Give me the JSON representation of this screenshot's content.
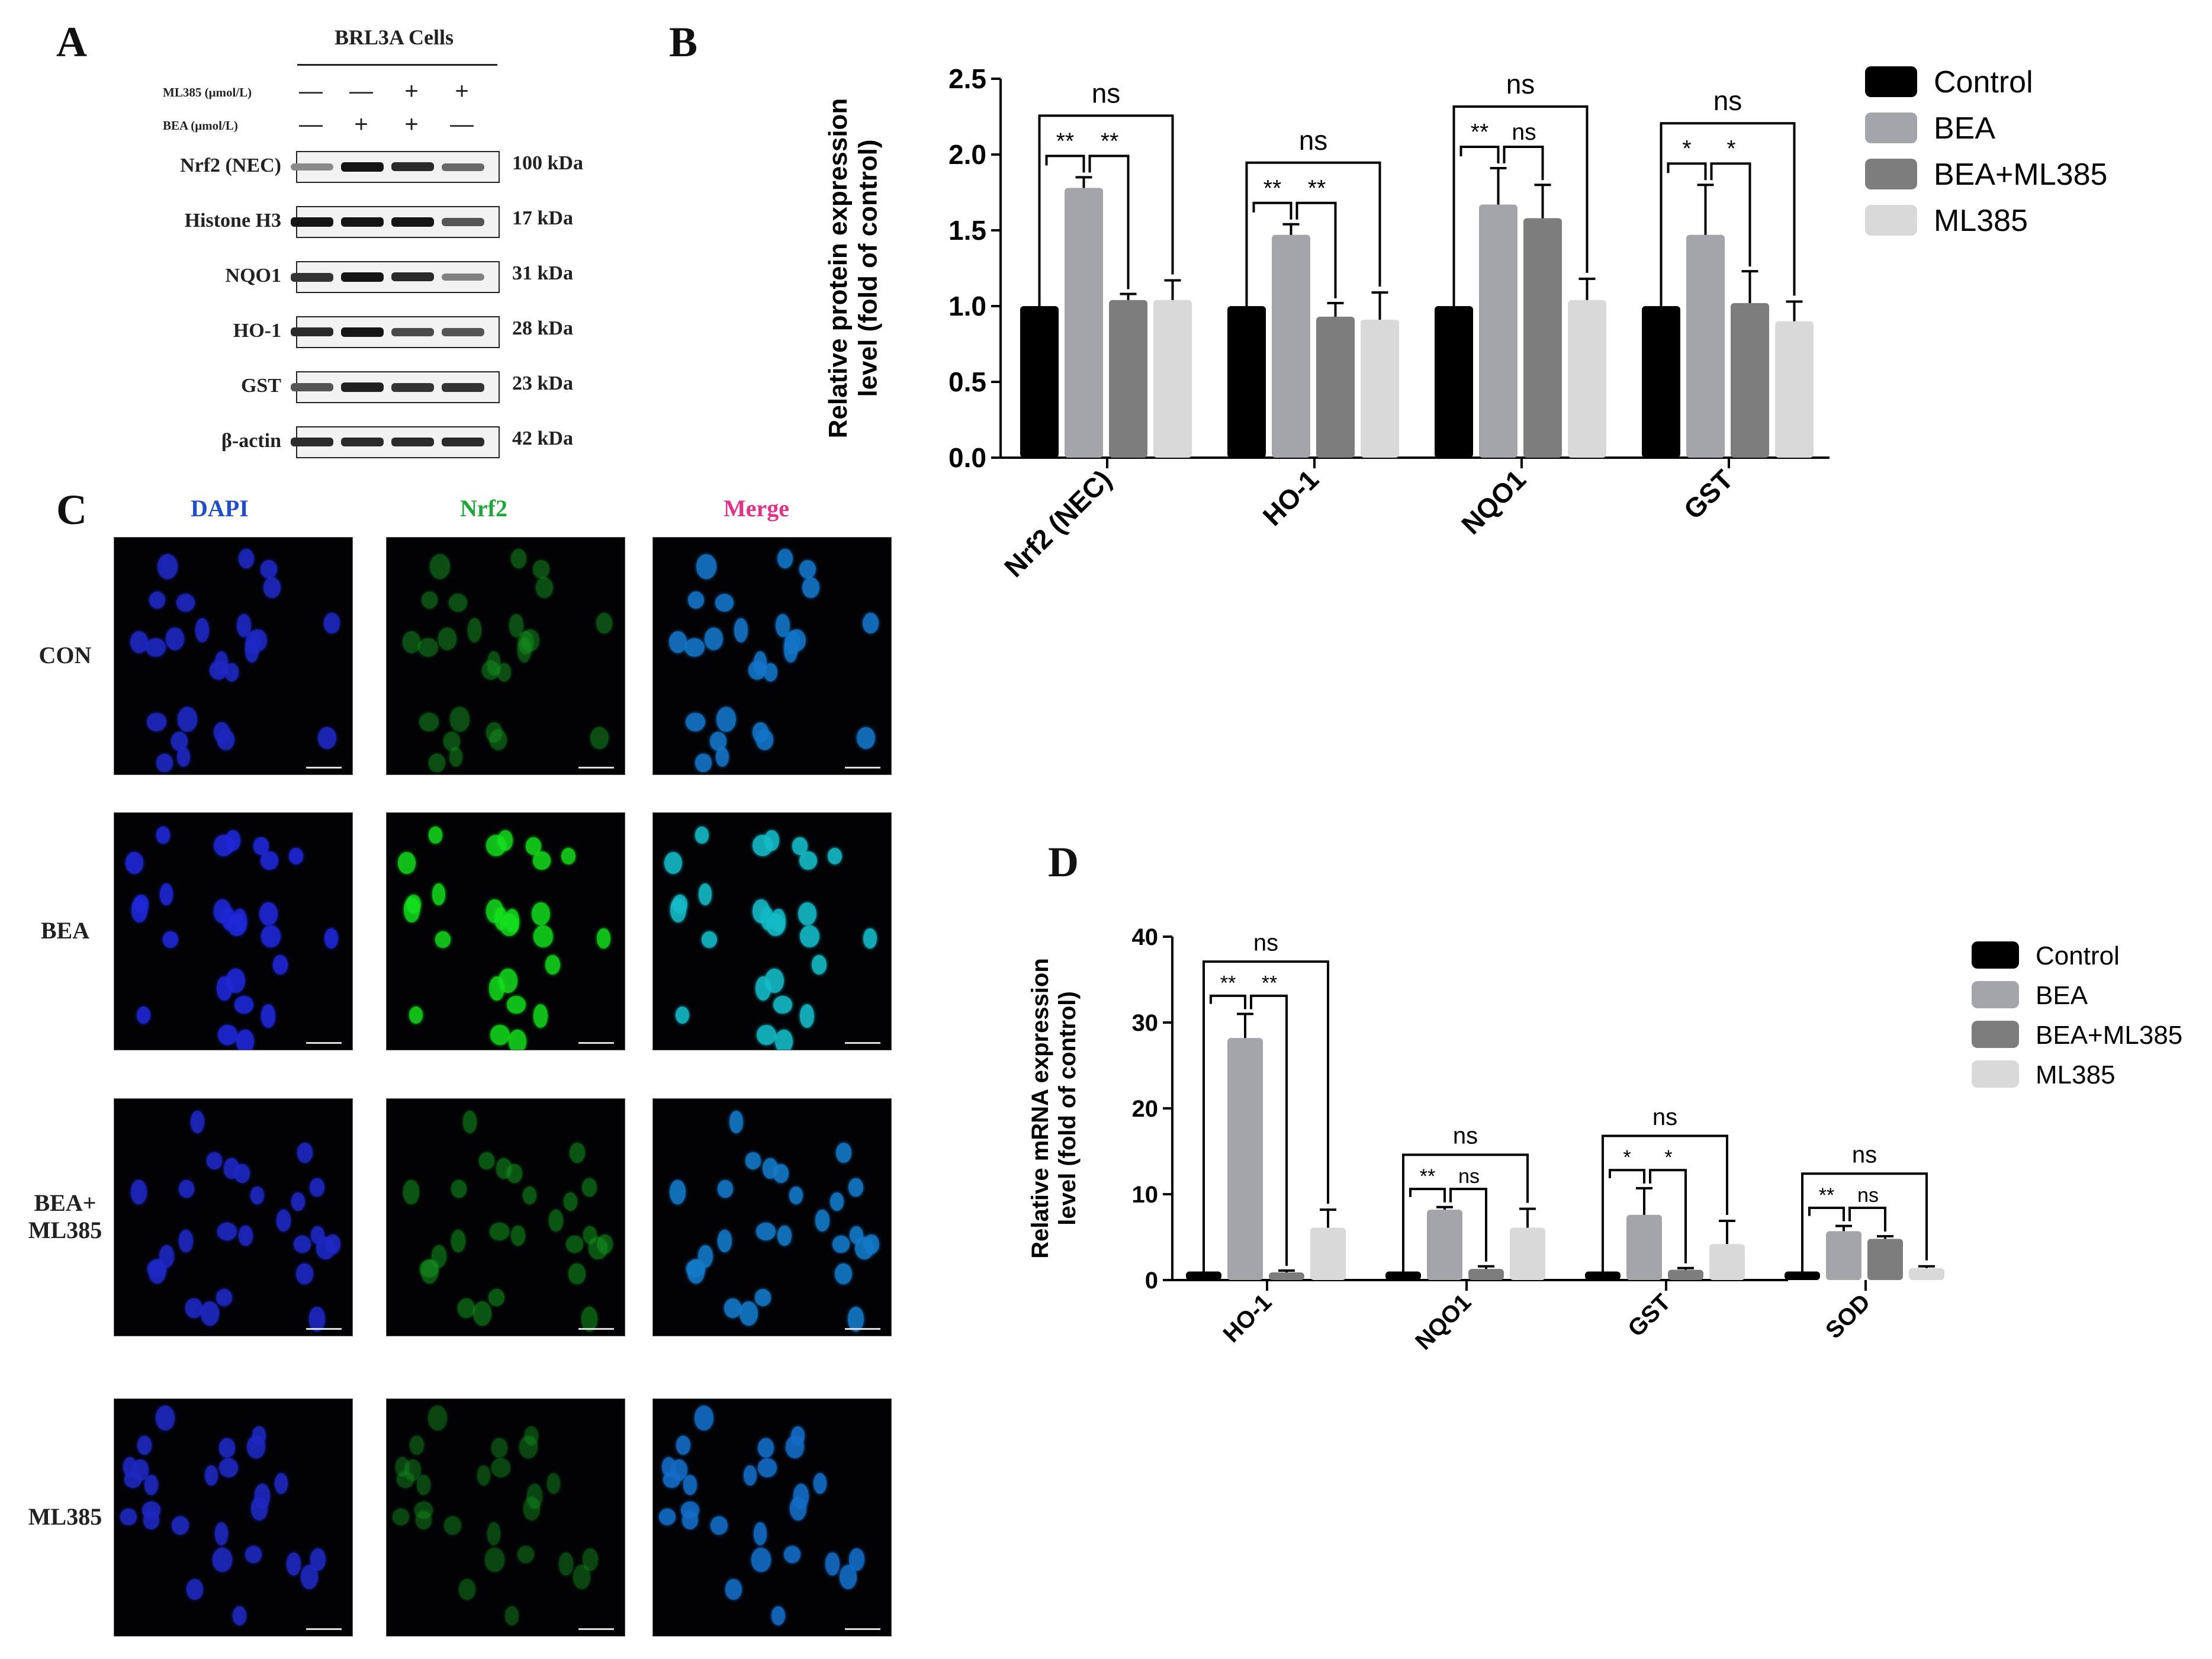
{
  "panels": {
    "a": "A",
    "b": "B",
    "c": "C",
    "d": "D"
  },
  "blot": {
    "title": "BRL3A Cells",
    "rows": [
      {
        "label": "ML385 (μmol/L)",
        "signs": [
          "—",
          "—",
          "+",
          "+"
        ]
      },
      {
        "label": "BEA (μmol/L)",
        "signs": [
          "—",
          "+",
          "+",
          "—"
        ]
      }
    ],
    "proteins": [
      {
        "name": "Nrf2 (NEC)",
        "kda": "100 kDa",
        "intensity": [
          0.45,
          1.0,
          0.9,
          0.6
        ]
      },
      {
        "name": "Histone H3",
        "kda": "17  kDa",
        "intensity": [
          1.0,
          1.0,
          1.0,
          0.7
        ]
      },
      {
        "name": "NQO1",
        "kda": "31 kDa",
        "intensity": [
          0.85,
          1.0,
          0.9,
          0.5
        ]
      },
      {
        "name": "HO-1",
        "kda": "28 kDa",
        "intensity": [
          0.9,
          1.0,
          0.75,
          0.7
        ]
      },
      {
        "name": "GST",
        "kda": "23 kDa",
        "intensity": [
          0.7,
          0.95,
          0.85,
          0.85
        ]
      },
      {
        "name": "β-actin",
        "kda": "42 kDa",
        "intensity": [
          0.9,
          0.9,
          0.9,
          0.9
        ]
      }
    ]
  },
  "micrographs": {
    "columns": [
      {
        "label": "DAPI",
        "color": "#1f4fc8"
      },
      {
        "label": "Nrf2",
        "color": "#1fa83a"
      },
      {
        "label": "Merge",
        "color": "#e0338a"
      }
    ],
    "rows": [
      "CON",
      "BEA",
      "BEA+ ML385",
      "ML385"
    ],
    "nrf2_intensity": [
      0.35,
      0.9,
      0.4,
      0.3
    ]
  },
  "legend": [
    "Control",
    "BEA",
    "BEA+ML385",
    "ML385"
  ],
  "colors": {
    "control": "#000000",
    "bea": "#a4a5aa",
    "bea_ml385": "#7d7d7d",
    "ml385": "#d9d9d9"
  },
  "chart_data": [
    {
      "type": "bar",
      "categories": [
        "Nrf2 (NEC)",
        "HO-1",
        "NQO1",
        "GST"
      ],
      "ylabel": "Relative protein expression level (fold of control)",
      "ylim": [
        0,
        2.5
      ],
      "yticks": [
        "0.0",
        "0.5",
        "1.0",
        "1.5",
        "2.0",
        "2.5"
      ],
      "series": [
        {
          "name": "Control",
          "values": [
            1.0,
            1.0,
            1.0,
            1.0
          ],
          "errors": [
            0,
            0,
            0,
            0
          ]
        },
        {
          "name": "BEA",
          "values": [
            1.78,
            1.47,
            1.67,
            1.47
          ],
          "errors": [
            0.07,
            0.07,
            0.24,
            0.33
          ]
        },
        {
          "name": "BEA+ML385",
          "values": [
            1.04,
            0.93,
            1.58,
            1.02
          ],
          "errors": [
            0.04,
            0.09,
            0.22,
            0.21
          ]
        },
        {
          "name": "ML385",
          "values": [
            1.04,
            0.91,
            1.04,
            0.9
          ],
          "errors": [
            0.13,
            0.18,
            0.14,
            0.13
          ]
        }
      ],
      "annotations": [
        {
          "labels": [
            "**",
            "**"
          ],
          "top": "ns"
        },
        {
          "labels": [
            "**",
            "**"
          ],
          "top": "ns"
        },
        {
          "labels": [
            "**",
            "ns"
          ],
          "top": "ns"
        },
        {
          "labels": [
            "*",
            "*"
          ],
          "top": "ns"
        }
      ],
      "legend_position": "top-right"
    },
    {
      "type": "bar",
      "categories": [
        "HO-1",
        "NQO1",
        "GST",
        "SOD"
      ],
      "ylabel": "Relative mRNA expression level (fold of control)",
      "ylim": [
        0,
        40
      ],
      "yticks": [
        "0",
        "10",
        "20",
        "30",
        "40"
      ],
      "series": [
        {
          "name": "Control",
          "values": [
            1.0,
            1.0,
            1.0,
            1.0
          ],
          "errors": [
            0,
            0,
            0,
            0
          ]
        },
        {
          "name": "BEA",
          "values": [
            28.2,
            8.2,
            7.6,
            5.7
          ],
          "errors": [
            2.8,
            0.3,
            3.1,
            0.6
          ]
        },
        {
          "name": "BEA+ML385",
          "values": [
            0.9,
            1.3,
            1.2,
            4.8
          ],
          "errors": [
            0.2,
            0.3,
            0.2,
            0.3
          ]
        },
        {
          "name": "ML385",
          "values": [
            6.1,
            6.1,
            4.2,
            1.4
          ],
          "errors": [
            2.1,
            2.2,
            2.7,
            0.2
          ]
        }
      ],
      "annotations": [
        {
          "labels": [
            "**",
            "**"
          ],
          "top": "ns"
        },
        {
          "labels": [
            "**",
            "ns"
          ],
          "top": "ns"
        },
        {
          "labels": [
            "*",
            "*"
          ],
          "top": "ns"
        },
        {
          "labels": [
            "**",
            "ns"
          ],
          "top": "ns"
        }
      ],
      "legend_position": "top-right"
    }
  ]
}
